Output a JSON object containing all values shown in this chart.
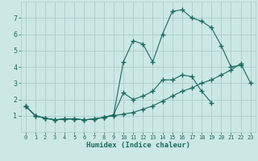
{
  "title": "",
  "xlabel": "Humidex (Indice chaleur)",
  "background_color": "#cce8e4",
  "grid_color": "#aaccca",
  "line_color": "#1a6b5e",
  "xlim": [
    -0.5,
    23.5
  ],
  "ylim": [
    0,
    8
  ],
  "xticks": [
    0,
    1,
    2,
    3,
    4,
    5,
    6,
    7,
    8,
    9,
    10,
    11,
    12,
    13,
    14,
    15,
    16,
    17,
    18,
    19,
    20,
    21,
    22,
    23
  ],
  "yticks": [
    1,
    2,
    3,
    4,
    5,
    6,
    7
  ],
  "line1_x": [
    0,
    1,
    2,
    3,
    4,
    5,
    6,
    7,
    8,
    9,
    10,
    11,
    12,
    13,
    14,
    15,
    16,
    17,
    18,
    19,
    20,
    21,
    22,
    23
  ],
  "line1_y": [
    1.6,
    1.0,
    0.85,
    0.75,
    0.8,
    0.8,
    0.75,
    0.8,
    0.9,
    1.0,
    1.1,
    1.2,
    1.4,
    1.6,
    1.9,
    2.2,
    2.5,
    2.7,
    3.0,
    3.2,
    3.5,
    3.8,
    4.2,
    3.0
  ],
  "line2_x": [
    0,
    1,
    2,
    3,
    4,
    5,
    6,
    7,
    8,
    9,
    10,
    11,
    12,
    13,
    14,
    15,
    16,
    17,
    18,
    19,
    20,
    21,
    22
  ],
  "line2_y": [
    1.6,
    1.0,
    0.85,
    0.75,
    0.8,
    0.8,
    0.75,
    0.8,
    0.9,
    1.05,
    4.3,
    5.6,
    5.4,
    4.3,
    6.0,
    7.4,
    7.5,
    7.0,
    6.8,
    6.4,
    5.3,
    4.0,
    4.1
  ],
  "line3_x": [
    0,
    1,
    2,
    3,
    4,
    5,
    6,
    7,
    8,
    9,
    10,
    11,
    12,
    13,
    14,
    15,
    16,
    17,
    18,
    19
  ],
  "line3_y": [
    1.6,
    1.0,
    0.85,
    0.75,
    0.8,
    0.8,
    0.75,
    0.8,
    0.9,
    1.05,
    2.4,
    2.0,
    2.2,
    2.5,
    3.2,
    3.2,
    3.5,
    3.4,
    2.5,
    1.8
  ]
}
